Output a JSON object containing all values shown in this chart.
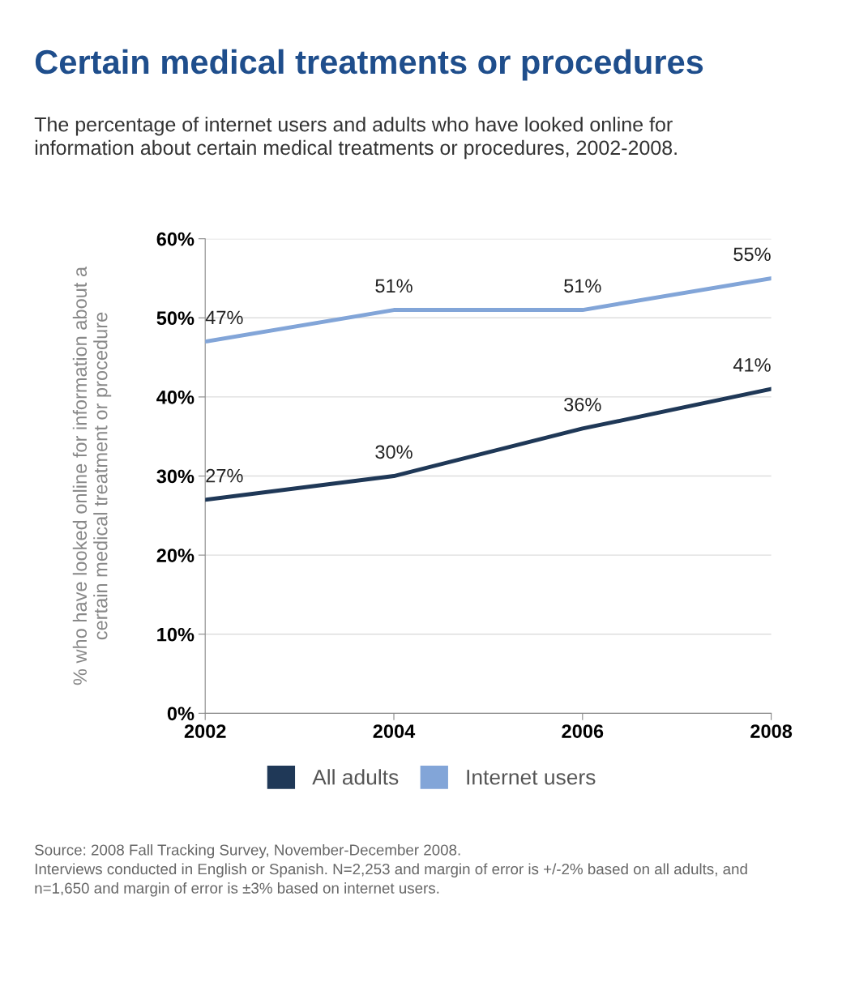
{
  "chart_data": {
    "type": "line",
    "title": "Certain medical treatments or procedures",
    "subtitle": "The percentage of internet users and adults who have looked online for\ninformation about certain medical treatments or procedures, 2002-2008.",
    "ylabel": "% who have looked online for information about a\ncertain medical treatment or procedure",
    "x": [
      2002,
      2004,
      2006,
      2008
    ],
    "xlim": [
      2002,
      2008
    ],
    "xticks": [
      2002,
      2004,
      2006,
      2008
    ],
    "ylim": [
      0,
      60
    ],
    "yticks": [
      {
        "value": 0,
        "label": "0%"
      },
      {
        "value": 10,
        "label": "10%"
      },
      {
        "value": 20,
        "label": "20%"
      },
      {
        "value": 30,
        "label": "30%"
      },
      {
        "value": 40,
        "label": "40%"
      },
      {
        "value": 50,
        "label": "50%"
      },
      {
        "value": 60,
        "label": "60%"
      }
    ],
    "series": [
      {
        "name": "All adults",
        "color": "#1f3857",
        "values": [
          27,
          30,
          36,
          41
        ],
        "value_labels": [
          "27%",
          "30%",
          "36%",
          "41%"
        ]
      },
      {
        "name": "Internet users",
        "color": "#82a5d8",
        "values": [
          47,
          51,
          51,
          55
        ],
        "value_labels": [
          "47%",
          "51%",
          "51%",
          "55%"
        ]
      }
    ],
    "grid": "y",
    "legend": "bottom",
    "marker": "none",
    "line_style": "solid",
    "annotations": [
      "Source: 2008 Fall Tracking Survey, November-December 2008.\nInterviews conducted in English or Spanish. N=2,253 and margin of error is +/-2% based on all adults, and\nn=1,650 and margin of error is ±3% based on internet users."
    ]
  }
}
